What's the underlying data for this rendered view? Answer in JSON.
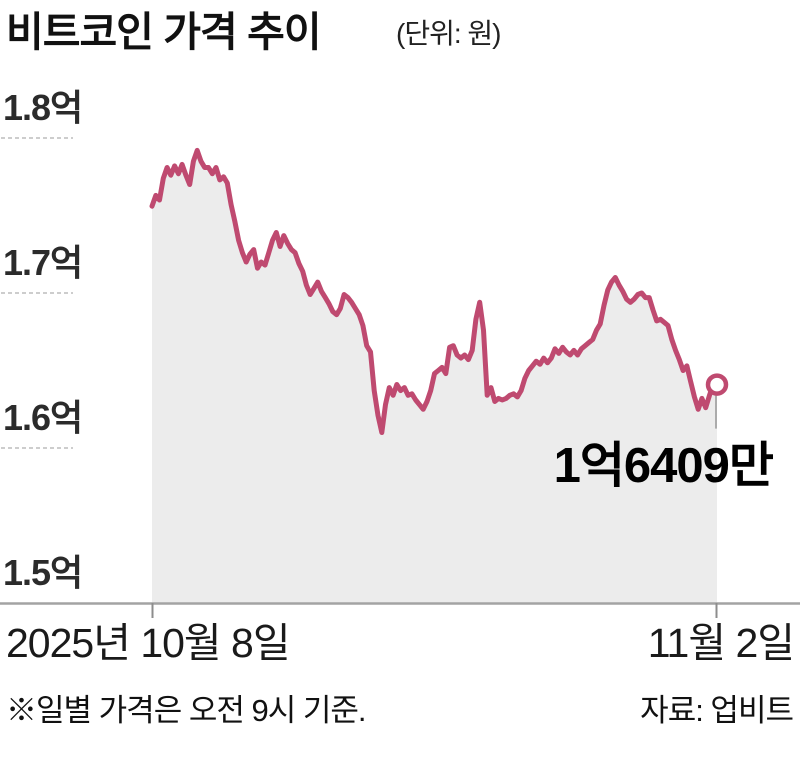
{
  "header": {
    "title": "비트코인 가격 추이",
    "unit_label": "(단위: 원)"
  },
  "footer": {
    "note": "※일별 가격은 오전 9시 기준.",
    "source": "자료: 업비트"
  },
  "chart_data": {
    "type": "area",
    "title": "비트코인 가격 추이",
    "unit": "원",
    "x_start_label": "2025년 10월 8일",
    "x_end_label": "11월 2일",
    "end_label": "1억6409만",
    "end_value_eok": 1.6409,
    "ylim": [
      1.5,
      1.8
    ],
    "y_axis": {
      "ticks": [
        {
          "label": "1.8억",
          "value": 1.8,
          "dash": true
        },
        {
          "label": "1.7억",
          "value": 1.7,
          "dash": true
        },
        {
          "label": "1.6억",
          "value": 1.6,
          "dash": true
        },
        {
          "label": "1.5억",
          "value": 1.5,
          "dash": false
        }
      ]
    },
    "legend": "none",
    "grid": "left-stub-dashes-only",
    "values_eok": [
      1.756,
      1.763,
      1.76,
      1.774,
      1.781,
      1.776,
      1.782,
      1.777,
      1.783,
      1.776,
      1.77,
      1.785,
      1.792,
      1.785,
      1.781,
      1.781,
      1.777,
      1.781,
      1.773,
      1.775,
      1.771,
      1.757,
      1.746,
      1.734,
      1.726,
      1.72,
      1.725,
      1.728,
      1.716,
      1.72,
      1.718,
      1.726,
      1.734,
      1.739,
      1.73,
      1.737,
      1.732,
      1.728,
      1.726,
      1.719,
      1.714,
      1.705,
      1.699,
      1.703,
      1.707,
      1.701,
      1.697,
      1.693,
      1.688,
      1.686,
      1.69,
      1.699,
      1.697,
      1.694,
      1.69,
      1.686,
      1.679,
      1.666,
      1.662,
      1.637,
      1.621,
      1.61,
      1.628,
      1.639,
      1.634,
      1.641,
      1.637,
      1.639,
      1.634,
      1.635,
      1.631,
      1.628,
      1.625,
      1.63,
      1.637,
      1.648,
      1.65,
      1.652,
      1.648,
      1.665,
      1.666,
      1.66,
      1.658,
      1.66,
      1.657,
      1.663,
      1.683,
      1.694,
      1.676,
      1.634,
      1.639,
      1.63,
      1.632,
      1.631,
      1.632,
      1.634,
      1.635,
      1.633,
      1.637,
      1.645,
      1.65,
      1.653,
      1.656,
      1.654,
      1.658,
      1.655,
      1.658,
      1.664,
      1.661,
      1.665,
      1.662,
      1.66,
      1.663,
      1.66,
      1.664,
      1.666,
      1.668,
      1.67,
      1.676,
      1.68,
      1.692,
      1.702,
      1.707,
      1.71,
      1.705,
      1.701,
      1.696,
      1.694,
      1.696,
      1.699,
      1.7,
      1.697,
      1.697,
      1.689,
      1.682,
      1.683,
      1.681,
      1.679,
      1.67,
      1.663,
      1.657,
      1.65,
      1.653,
      1.643,
      1.633,
      1.625,
      1.632,
      1.626,
      1.634,
      1.641,
      1.6409
    ],
    "colors": {
      "line": "#bf4a70",
      "area_fill": "#ececec",
      "axis": "#a3a3a3",
      "tick": "#8d8d8d",
      "grid_dash": "#c6c6c6",
      "leader": "#9b9b9b",
      "marker_fill": "#ffffff"
    }
  }
}
